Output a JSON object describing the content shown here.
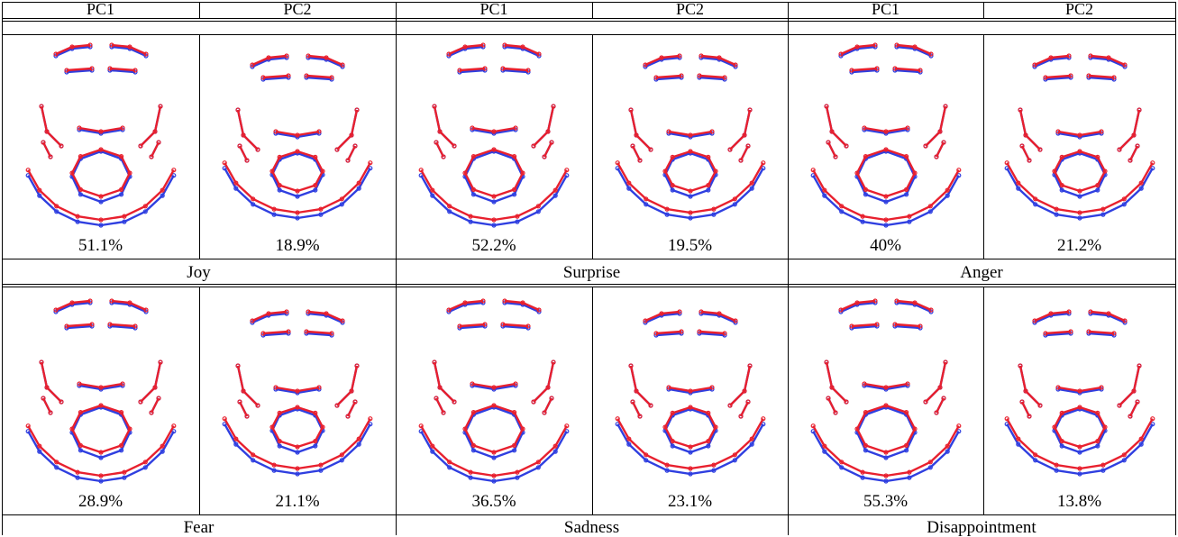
{
  "headers": [
    "PC1",
    "PC2",
    "PC1",
    "PC2",
    "PC1",
    "PC2"
  ],
  "rows": [
    {
      "emotions": [
        "Joy",
        "Surprise",
        "Anger"
      ],
      "percentages": [
        "51.1%",
        "18.9%",
        "52.2%",
        "19.5%",
        "40%",
        "21.2%"
      ]
    },
    {
      "emotions": [
        "Fear",
        "Sadness",
        "Disappointment"
      ],
      "percentages": [
        "28.9%",
        "21.1%",
        "36.5%",
        "23.1%",
        "55.3%",
        "13.8%"
      ]
    }
  ],
  "colors": {
    "mean_shape": "#2f3fe0",
    "deformed_shape": "#e8202e",
    "grid": "#000000"
  }
}
